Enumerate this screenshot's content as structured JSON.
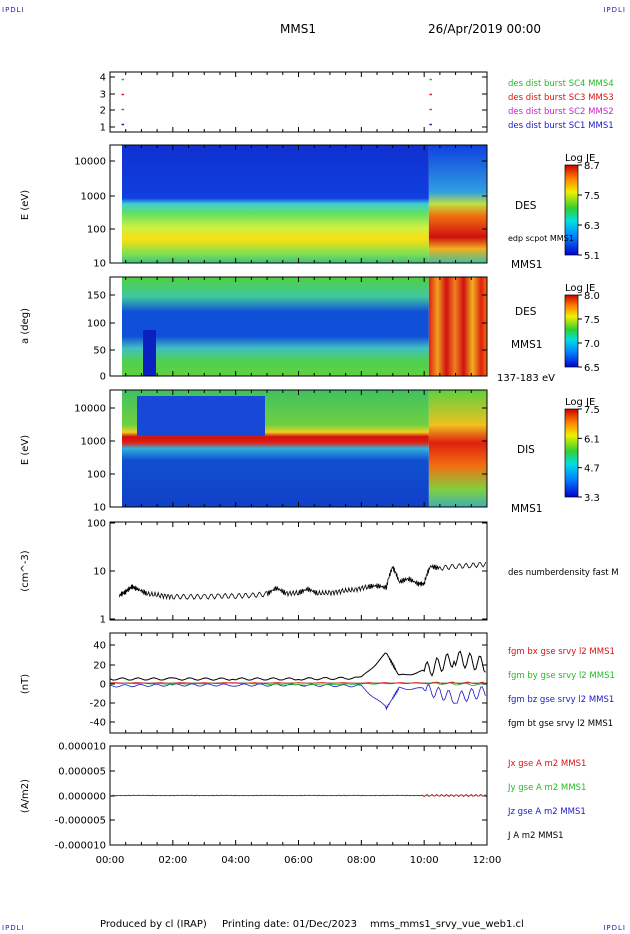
{
  "header": {
    "corner_tl": "IPDLI",
    "corner_tr": "IPDLI",
    "corner_bl": "IPDLI",
    "corner_br": "IPDLI",
    "spacecraft": "MMS1",
    "datetime": "26/Apr/2019 00:00"
  },
  "footer": {
    "produced": "Produced by cl (IRAP)",
    "printing": "Printing date: 01/Dec/2023",
    "file": "mms_mms1_srvy_vue_web1.cl"
  },
  "colors": {
    "blue": "#1a1acc",
    "magenta": "#cc22cc",
    "red": "#dd1111",
    "green": "#22bb22",
    "black": "#000000"
  },
  "chart_data": [
    {
      "type": "scatter",
      "panel": "burst",
      "yticks": [
        "4",
        "3",
        "2",
        "1"
      ],
      "ylim": [
        0.5,
        4.5
      ],
      "series": [
        {
          "name": "des dist burst SC1 MMS1",
          "color": "#1a1acc",
          "y": 1,
          "x_hours": [
            0.4,
            10.2
          ]
        },
        {
          "name": "des dist burst SC2 MMS2",
          "color": "#cc22cc",
          "y": 2,
          "x_hours": [
            0.4,
            10.2
          ]
        },
        {
          "name": "des dist burst SC3 MMS3",
          "color": "#dd1111",
          "y": 3,
          "x_hours": [
            0.4,
            10.2
          ]
        },
        {
          "name": "des dist burst SC4 MMS4",
          "color": "#22bb22",
          "y": 4,
          "x_hours": [
            0.4,
            10.2
          ]
        }
      ]
    },
    {
      "type": "heatmap",
      "panel": "des-energy",
      "ylabel": "E (eV)",
      "yscale": "log",
      "ylim": [
        10,
        30000
      ],
      "yticks": [
        "10000",
        "1000",
        "100",
        "10"
      ],
      "colorbar": {
        "title": "Log JE",
        "ticks": [
          "8.7",
          "7.5",
          "6.3",
          "5.1"
        ]
      },
      "right_labels": [
        "DES",
        "edp scpot MMS1",
        "MMS1"
      ]
    },
    {
      "type": "heatmap",
      "panel": "des-pitch",
      "ylabel": "a (deg)",
      "ylim": [
        0,
        180
      ],
      "yticks": [
        "150",
        "100",
        "50",
        "0"
      ],
      "colorbar": {
        "title": "Log JE",
        "ticks": [
          "8.0",
          "7.5",
          "7.0",
          "6.5"
        ]
      },
      "right_labels": [
        "DES",
        "MMS1",
        "137-183 eV"
      ]
    },
    {
      "type": "heatmap",
      "panel": "dis-energy",
      "ylabel": "E (eV)",
      "yscale": "log",
      "ylim": [
        10,
        30000
      ],
      "yticks": [
        "10000",
        "1000",
        "100",
        "10"
      ],
      "colorbar": {
        "title": "Log JE",
        "ticks": [
          "7.5",
          "6.1",
          "4.7",
          "3.3"
        ]
      },
      "right_labels": [
        "DIS",
        "MMS1"
      ]
    },
    {
      "type": "line",
      "panel": "density",
      "ylabel": "(cm^-3)",
      "yscale": "log",
      "ylim": [
        1,
        100
      ],
      "yticks": [
        "100",
        "10",
        "1"
      ],
      "series": [
        {
          "name": "des numberdensity fast M",
          "color": "#000000",
          "x_hours": [
            0.3,
            0.5,
            0.7,
            0.9,
            1.2,
            1.6,
            2.0,
            2.5,
            3.0,
            3.5,
            4.0,
            4.5,
            5.0,
            5.3,
            5.6,
            6.0,
            6.3,
            6.6,
            7.0,
            7.4,
            7.8,
            8.2,
            8.5,
            8.8,
            9.0,
            9.2,
            9.5,
            9.8,
            10.0,
            10.2,
            10.5,
            11.0,
            11.5,
            12.0
          ],
          "values": [
            3.2,
            3.8,
            4.8,
            4.2,
            3.4,
            3.2,
            3.0,
            3.0,
            3.0,
            3.1,
            3.1,
            3.2,
            3.4,
            4.5,
            3.5,
            3.6,
            4.3,
            3.5,
            3.6,
            3.9,
            4.2,
            4.8,
            5.0,
            4.6,
            12.0,
            6.0,
            7.0,
            5.5,
            5.5,
            12.5,
            11.5,
            12.5,
            13.0,
            14.0
          ]
        }
      ]
    },
    {
      "type": "line",
      "panel": "fgm",
      "ylabel": "(nT)",
      "ylim": [
        -50,
        50
      ],
      "yticks": [
        "40",
        "20",
        "0",
        "-20",
        "-40"
      ],
      "series": [
        {
          "name": "fgm bx gse srvy l2 MMS1",
          "color": "#dd1111",
          "x_hours": [
            0,
            4,
            8,
            10,
            12
          ],
          "values": [
            0,
            0,
            0,
            0,
            0
          ]
        },
        {
          "name": "fgm by gse srvy l2 MMS1",
          "color": "#22bb22",
          "x_hours": [
            0,
            2,
            4,
            6,
            8,
            10,
            12
          ],
          "values": [
            0,
            -1,
            0,
            -2,
            -1,
            0,
            -2
          ]
        },
        {
          "name": "fgm bz gse srvy l2 MMS1",
          "color": "#1a1acc",
          "x_hours": [
            0,
            2,
            4,
            6,
            8,
            8.8,
            9.2,
            10,
            11,
            12
          ],
          "values": [
            -3,
            -2,
            -2,
            -2,
            -3,
            -25,
            -5,
            -6,
            -15,
            -8
          ]
        },
        {
          "name": "fgm bt gse srvy l2 MMS1",
          "color": "#000000",
          "x_hours": [
            0,
            2,
            4,
            6,
            8,
            8.8,
            9.2,
            10,
            11,
            12
          ],
          "values": [
            4,
            4,
            4,
            4,
            5,
            30,
            7,
            12,
            25,
            18
          ]
        }
      ]
    },
    {
      "type": "line",
      "panel": "current",
      "ylabel": "(A/m2)",
      "ylim": [
        -1e-05,
        1e-05
      ],
      "yticks": [
        "0.000010",
        "0.000005",
        "0.000000",
        "-0.000005",
        "-0.000010"
      ],
      "series": [
        {
          "name": "Jx gse A m2 MMS1",
          "color": "#dd1111",
          "x_hours": [
            0,
            12
          ],
          "values": [
            0,
            0
          ]
        },
        {
          "name": "Jy gse A m2 MMS1",
          "color": "#22bb22",
          "x_hours": [
            0,
            12
          ],
          "values": [
            0,
            0
          ]
        },
        {
          "name": "Jz gse A m2 MMS1",
          "color": "#1a1acc",
          "x_hours": [
            0,
            12
          ],
          "values": [
            0,
            0
          ]
        },
        {
          "name": "J A m2 MMS1",
          "color": "#000000",
          "x_hours": [
            0,
            12
          ],
          "values": [
            0,
            0
          ]
        }
      ]
    }
  ],
  "xaxis": {
    "ticks": [
      "00:00",
      "02:00",
      "04:00",
      "06:00",
      "08:00",
      "10:00",
      "12:00"
    ],
    "range_hours": [
      0,
      12
    ]
  }
}
